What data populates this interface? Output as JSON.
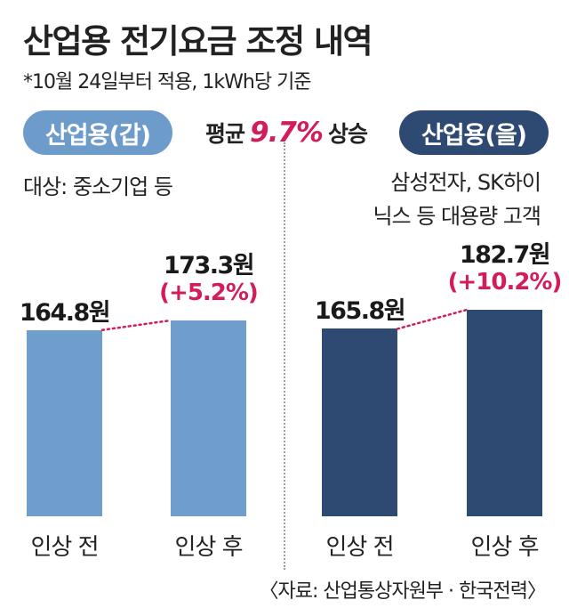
{
  "title": "산업용 전기요금 조정 내역",
  "subtitle": "*10월 24일부터 적용, 1kWh당 기준",
  "groups": {
    "left_label": "산업용(갑)",
    "right_label": "산업용(을)",
    "left_target": "대상: 중소기업 등",
    "right_target_line1": "삼성전자, SK하이",
    "right_target_line2": "닉스 등 대용량 고객"
  },
  "average": {
    "prefix": "평균",
    "value": "9.7%",
    "suffix": "상승"
  },
  "source": "〈자료: 산업통상자원부 · 한국전력〉",
  "colors": {
    "light_bar": "#6f9dcc",
    "dark_bar": "#2e4a73",
    "accent": "#d31c5c"
  },
  "chart_data": [
    {
      "type": "bar",
      "categories": [
        "인상 전",
        "인상 후"
      ],
      "values": [
        164.8,
        173.3
      ],
      "value_labels": [
        "164.8원",
        "173.3원"
      ],
      "change_label": "(+5.2%)",
      "group": "산업용(갑)",
      "ylim": [
        0,
        185
      ]
    },
    {
      "type": "bar",
      "categories": [
        "인상 전",
        "인상 후"
      ],
      "values": [
        165.8,
        182.7
      ],
      "value_labels": [
        "165.8원",
        "182.7원"
      ],
      "change_label": "(+10.2%)",
      "group": "산업용(을)",
      "ylim": [
        0,
        185
      ]
    }
  ]
}
